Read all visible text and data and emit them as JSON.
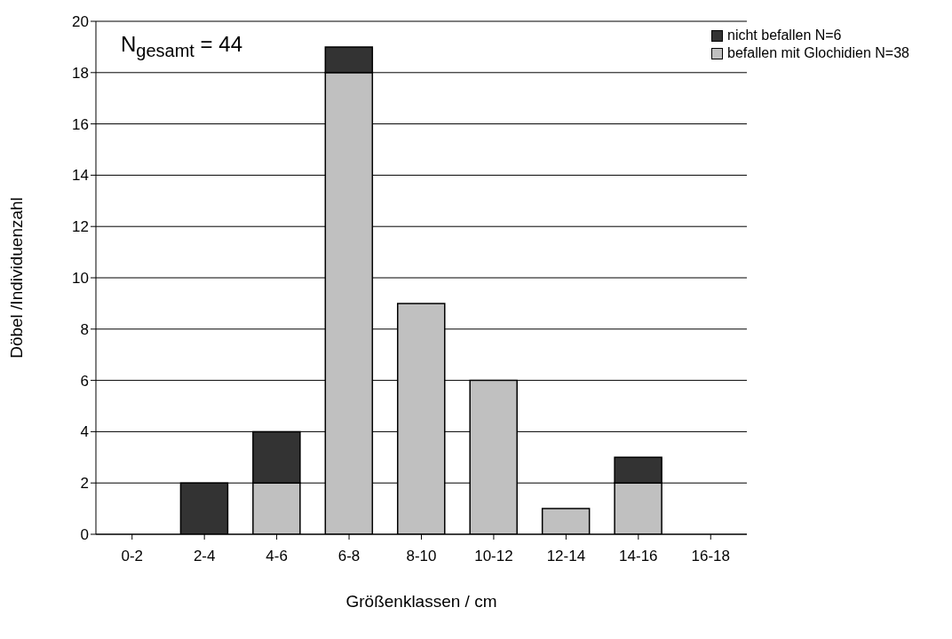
{
  "chart_data": {
    "type": "bar",
    "stacked": true,
    "xlabel": "Größenklassen / cm",
    "ylabel": "Döbel /Individuenzahl",
    "categories": [
      "0-2",
      "2-4",
      "4-6",
      "6-8",
      "8-10",
      "10-12",
      "12-14",
      "14-16",
      "16-18"
    ],
    "series": [
      {
        "name": "befallen mit Glochidien N=38",
        "color": "#c0c0c0",
        "values": [
          0,
          0,
          2,
          18,
          9,
          6,
          1,
          2,
          0
        ]
      },
      {
        "name": "nicht befallen N=6",
        "color": "#333333",
        "values": [
          0,
          2,
          2,
          1,
          0,
          0,
          0,
          1,
          0
        ]
      }
    ],
    "ylim": [
      0,
      20
    ],
    "yticks": [
      0,
      2,
      4,
      6,
      8,
      10,
      12,
      14,
      16,
      18,
      20
    ],
    "grid": "y",
    "legend": "top right",
    "annotations": [
      "N$_{gesamt}$ = 44"
    ]
  }
}
